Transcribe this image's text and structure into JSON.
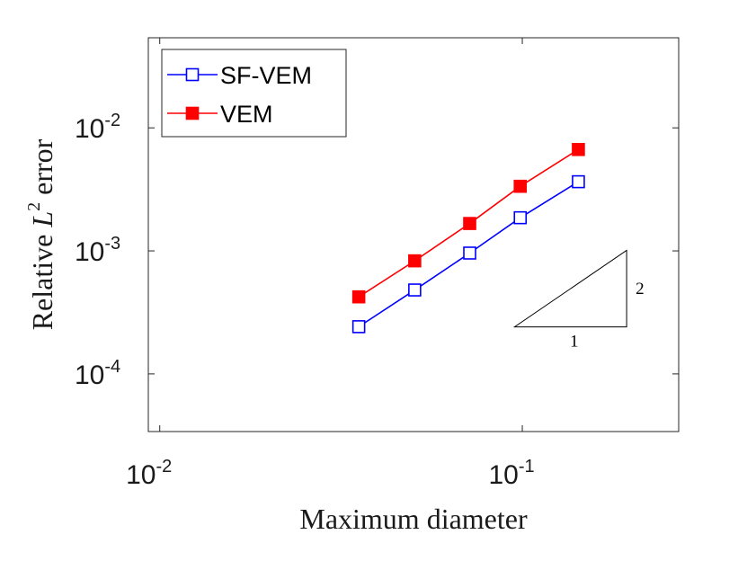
{
  "chart_data": {
    "type": "line",
    "xscale": "log",
    "yscale": "log",
    "xlim": [
      0.0093,
      0.27
    ],
    "ylim": [
      3.4e-05,
      0.054
    ],
    "xlabel": "Maximum diameter",
    "ylabel_prefix": "Relative",
    "ylabel_var": "L",
    "ylabel_sup": "2",
    "ylabel_suffix": "error",
    "x_ticks": [
      {
        "value": 0.01,
        "base": "10",
        "exp": "-2"
      },
      {
        "value": 0.1,
        "base": "10",
        "exp": "-1"
      }
    ],
    "y_ticks": [
      {
        "value": 0.0001,
        "base": "10",
        "exp": "-4"
      },
      {
        "value": 0.001,
        "base": "10",
        "exp": "-3"
      },
      {
        "value": 0.01,
        "base": "10",
        "exp": "-2"
      }
    ],
    "series": [
      {
        "name": "SF-VEM",
        "color": "#0000ff",
        "marker": "square-open",
        "x": [
          0.0354,
          0.0505,
          0.0716,
          0.0987,
          0.1428
        ],
        "y": [
          0.000242,
          0.000481,
          0.00096,
          0.00186,
          0.00365
        ]
      },
      {
        "name": "VEM",
        "color": "#ff0000",
        "marker": "square-filled",
        "x": [
          0.0354,
          0.0505,
          0.0716,
          0.0987,
          0.1428
        ],
        "y": [
          0.000423,
          0.00083,
          0.00167,
          0.00335,
          0.00667
        ]
      }
    ],
    "legend_position": "top-left",
    "slope_triangle": {
      "x": [
        0.0952,
        0.194
      ],
      "y": [
        0.000241,
        0.00101
      ],
      "run_label": "1",
      "rise_label": "2"
    },
    "grid": false
  }
}
